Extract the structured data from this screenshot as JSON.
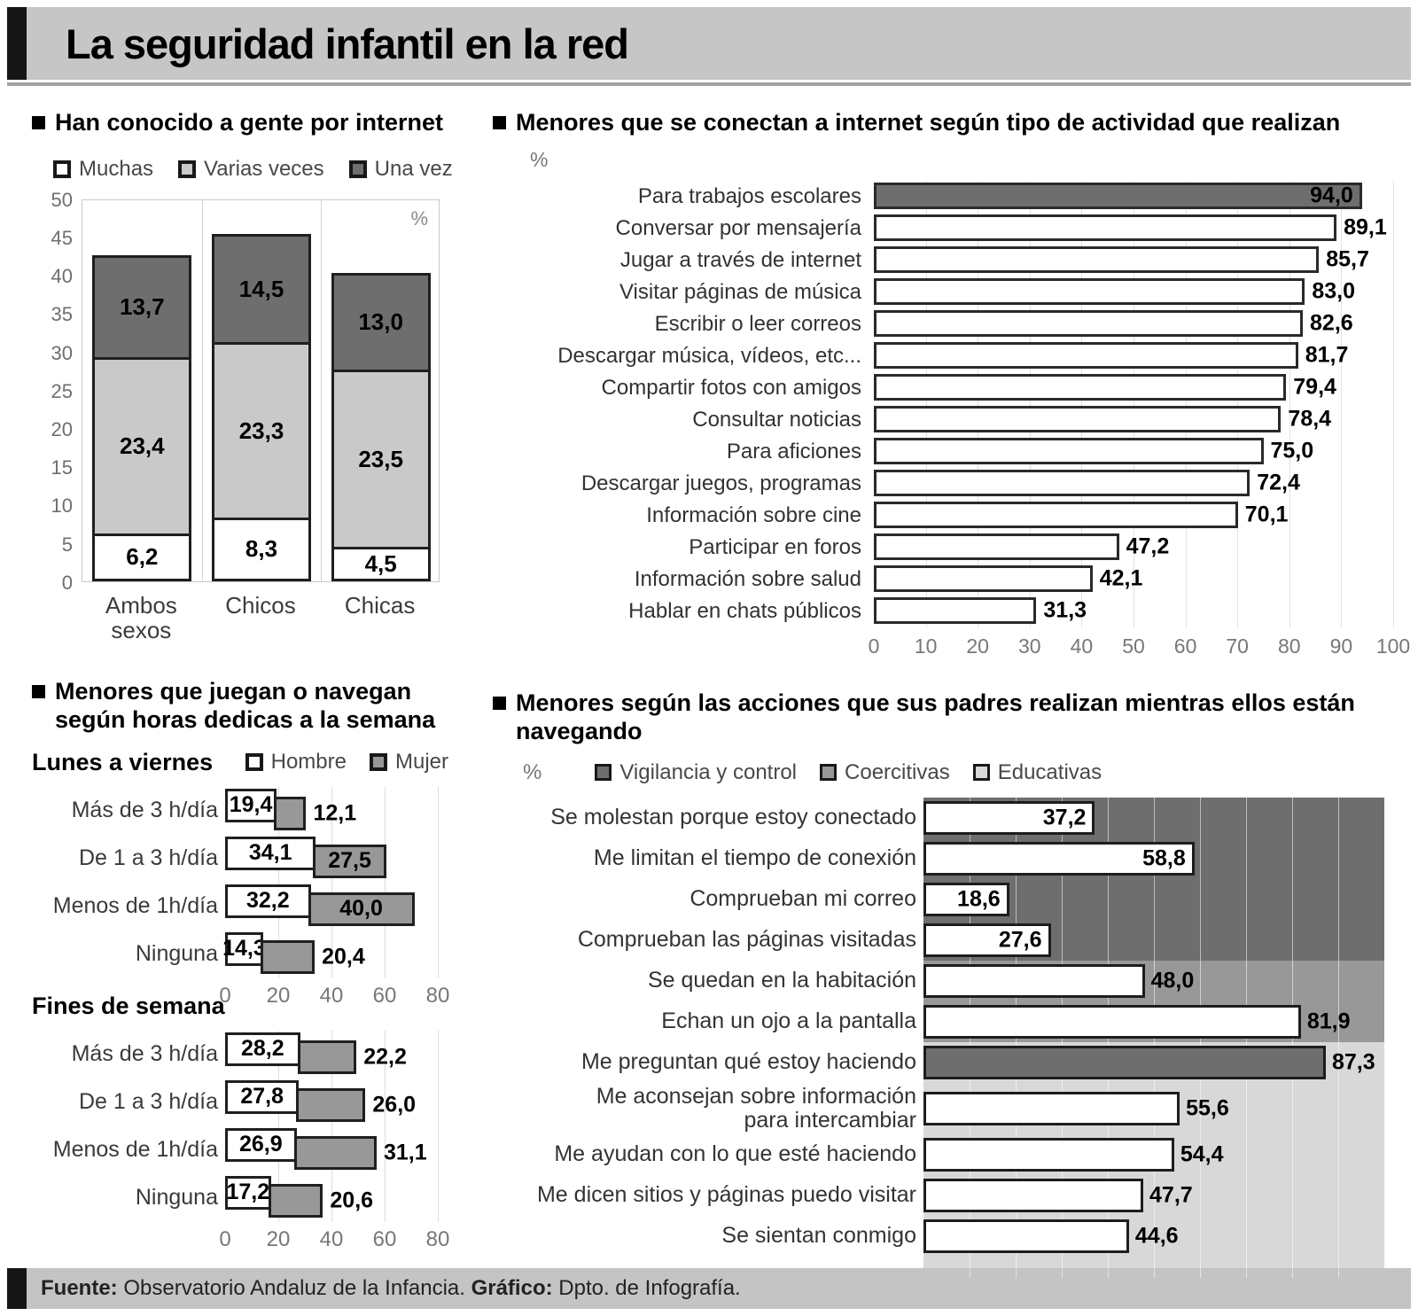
{
  "header": {
    "title": "La seguridad infantil en la red"
  },
  "footer": {
    "fuente_label": "Fuente:",
    "fuente_text": " Observatorio Andaluz de la Infancia. ",
    "grafico_label": "Gráfico:",
    "grafico_text": " Dpto. de Infografía."
  },
  "colors": {
    "dark": "#6e6e6e",
    "medium": "#989898",
    "light": "#c9c9c9",
    "zone_light": "#d8d8d8",
    "bar_white": "#ffffff",
    "header_bg": "#c6c6c6"
  },
  "chart_data": [
    {
      "id": "conocido-gente",
      "type": "bar",
      "subtype": "stacked_column",
      "title": "Han conocido a gente por internet",
      "unit": "%",
      "legend": [
        {
          "label": "Muchas",
          "color": "white"
        },
        {
          "label": "Varias veces",
          "color": "light"
        },
        {
          "label": "Una vez",
          "color": "dark"
        }
      ],
      "categories": [
        "Ambos\nsexos",
        "Chicos",
        "Chicas"
      ],
      "series": [
        {
          "name": "Muchas",
          "color": "white",
          "values": [
            6.2,
            8.3,
            4.5
          ]
        },
        {
          "name": "Varias veces",
          "color": "light",
          "values": [
            23.4,
            23.3,
            23.5
          ]
        },
        {
          "name": "Una vez",
          "color": "dark",
          "values": [
            13.7,
            14.5,
            13.0
          ]
        }
      ],
      "ylim": [
        0,
        50
      ],
      "yticks": [
        0,
        5,
        10,
        15,
        20,
        25,
        30,
        35,
        40,
        45,
        50
      ]
    },
    {
      "id": "actividades",
      "type": "bar",
      "subtype": "horizontal",
      "title": "Menores que se conectan a internet según tipo de actividad que realizan",
      "unit": "%",
      "categories": [
        "Para trabajos escolares",
        "Conversar por mensajería",
        "Jugar a través de internet",
        "Visitar páginas de música",
        "Escribir o leer correos",
        "Descargar música, vídeos, etc...",
        "Compartir fotos con amigos",
        "Consultar noticias",
        "Para aficiones",
        "Descargar juegos, programas",
        "Información sobre cine",
        "Participar en foros",
        "Información sobre salud",
        "Hablar en chats públicos"
      ],
      "values": [
        94.0,
        89.1,
        85.7,
        83.0,
        82.6,
        81.7,
        79.4,
        78.4,
        75.0,
        72.4,
        70.1,
        47.2,
        42.1,
        31.3
      ],
      "highlight_index": 0,
      "xlim": [
        0,
        100
      ],
      "xticks": [
        0,
        10,
        20,
        30,
        40,
        50,
        60,
        70,
        80,
        90,
        100
      ]
    },
    {
      "id": "horas-semana",
      "type": "bar",
      "subtype": "stacked_horizontal_pair",
      "title_lines": [
        "Menores que juegan o navegan",
        "según horas dedicas a la semana"
      ],
      "legend": [
        {
          "label": "Hombre",
          "color": "white"
        },
        {
          "label": "Mujer",
          "color": "medium"
        }
      ],
      "xlim": [
        0,
        80
      ],
      "xticks": [
        0,
        20,
        40,
        60,
        80
      ],
      "subcharts": [
        {
          "label": "Lunes a viernes",
          "categories": [
            "Más de 3 h/día",
            "De 1 a 3 h/día",
            "Menos de 1h/día",
            "Ninguna"
          ],
          "hombre": [
            19.4,
            34.1,
            32.2,
            14.3
          ],
          "mujer": [
            12.1,
            27.5,
            40.0,
            20.4
          ],
          "mujer_label_inside": [
            false,
            true,
            true,
            false
          ]
        },
        {
          "label": "Fines de semana",
          "categories": [
            "Más de 3 h/día",
            "De 1 a 3 h/día",
            "Menos de 1h/día",
            "Ninguna"
          ],
          "hombre": [
            28.2,
            27.8,
            26.9,
            17.2
          ],
          "mujer": [
            22.2,
            26.0,
            31.1,
            20.6
          ],
          "mujer_label_inside": [
            false,
            false,
            false,
            false
          ]
        }
      ]
    },
    {
      "id": "acciones-padres",
      "type": "bar",
      "subtype": "horizontal_zoned",
      "title_lines": [
        "Menores según las acciones que sus padres realizan mientras ellos están",
        "navegando"
      ],
      "unit": "%",
      "legend": [
        {
          "label": "Vigilancia y control",
          "color": "dark"
        },
        {
          "label": "Coercitivas",
          "color": "medium"
        },
        {
          "label": "Educativas",
          "color": "zone"
        }
      ],
      "xlim": [
        0,
        100
      ],
      "rows": [
        {
          "label": "Se molestan porque estoy conectado",
          "value": 37.2,
          "zone": "dark",
          "label_inside": true
        },
        {
          "label": "Me limitan el tiempo de conexión",
          "value": 58.8,
          "zone": "dark",
          "label_inside": true
        },
        {
          "label": "Comprueban mi correo",
          "value": 18.6,
          "zone": "dark",
          "label_inside": true
        },
        {
          "label": "Comprueban las páginas visitadas",
          "value": 27.6,
          "zone": "dark",
          "label_inside": true
        },
        {
          "label": "Se quedan en la habitación",
          "value": 48.0,
          "zone": "medium",
          "label_inside": false
        },
        {
          "label": "Echan un ojo a la pantalla",
          "value": 81.9,
          "zone": "medium",
          "label_inside": false
        },
        {
          "label": "Me preguntan qué estoy haciendo",
          "value": 87.3,
          "zone": "light",
          "label_inside": false,
          "highlight": true
        },
        {
          "label": "Me aconsejan sobre información\npara intercambiar",
          "value": 55.6,
          "zone": "light",
          "label_inside": false
        },
        {
          "label": "Me ayudan con lo que esté haciendo",
          "value": 54.4,
          "zone": "light",
          "label_inside": false
        },
        {
          "label": "Me dicen sitios y páginas puedo visitar",
          "value": 47.7,
          "zone": "light",
          "label_inside": false
        },
        {
          "label": "Se sientan conmigo",
          "value": 44.6,
          "zone": "light",
          "label_inside": false
        }
      ]
    }
  ]
}
